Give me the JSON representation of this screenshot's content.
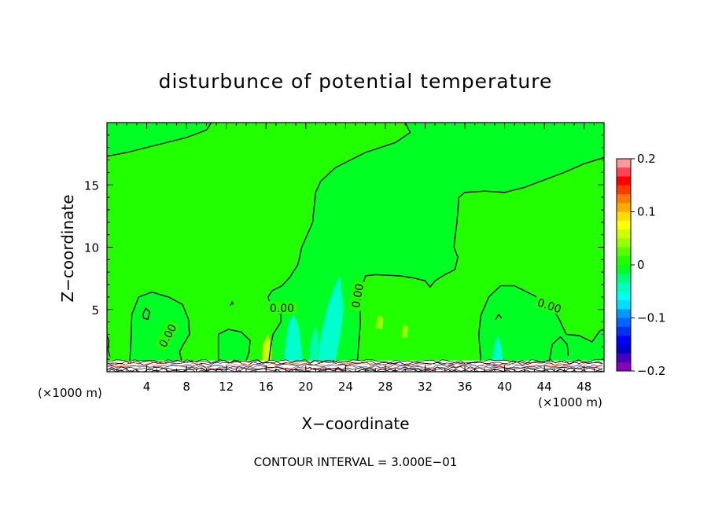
{
  "chart_data": {
    "type": "contour",
    "title": "disturbunce of potential temperature",
    "xlabel": "X−coordinate",
    "ylabel": "Z−coordinate",
    "x_unit_left": "(×1000 m)",
    "x_unit_right": "(×1000 m)",
    "xlim": [
      0,
      50
    ],
    "ylim": [
      0,
      20
    ],
    "xticks": [
      4,
      8,
      12,
      16,
      20,
      24,
      28,
      32,
      36,
      40,
      44,
      48
    ],
    "xtick_labels": [
      "4",
      "8",
      "12",
      "16",
      "20",
      "24",
      "28",
      "32",
      "36",
      "40",
      "44",
      "48"
    ],
    "yticks": [
      5,
      10,
      15
    ],
    "ytick_labels": [
      "5",
      "10",
      "15"
    ],
    "contour_interval_text": "CONTOUR INTERVAL = 3.000E−01",
    "contour_labels": [
      "0.00",
      "0.00",
      "0.00",
      "0.00",
      "0.00"
    ],
    "colorbar": {
      "min": -0.2,
      "max": 0.2,
      "ticks": [
        0.2,
        0.1,
        0,
        -0.1,
        -0.2
      ],
      "tick_labels": [
        "0.2",
        "0.1",
        "0",
        "−0.1",
        "−0.2"
      ],
      "colors": [
        "#ff9999",
        "#ff4455",
        "#ff0000",
        "#ff3a00",
        "#ff7a00",
        "#ffaa00",
        "#ffdd00",
        "#ffff00",
        "#ccff00",
        "#99ff00",
        "#55ff00",
        "#22ff00",
        "#00ff22",
        "#00ff77",
        "#00ffbb",
        "#00ffee",
        "#00ddff",
        "#0099ff",
        "#0066ff",
        "#0033ee",
        "#0000ff",
        "#0000cc",
        "#4400bb",
        "#8800bb"
      ]
    },
    "background_color": "#22ff00",
    "regions": [
      {
        "name": "upper-left",
        "color": "#00ff22",
        "points": [
          [
            0,
            20
          ],
          [
            0,
            17.3
          ],
          [
            2,
            17.6
          ],
          [
            5,
            18.2
          ],
          [
            8,
            18.8
          ],
          [
            10,
            19.4
          ],
          [
            10.5,
            20
          ]
        ]
      },
      {
        "name": "central-column",
        "color": "#00ff22",
        "points": [
          [
            30,
            20
          ],
          [
            30.5,
            19.2
          ],
          [
            29,
            18.4
          ],
          [
            26,
            17.6
          ],
          [
            23,
            16.4
          ],
          [
            21.5,
            15.3
          ],
          [
            21,
            14.4
          ],
          [
            20.8,
            13
          ],
          [
            20.7,
            12
          ],
          [
            19.6,
            10
          ],
          [
            19.2,
            8.6
          ],
          [
            18.4,
            7.6
          ],
          [
            17.6,
            6.9
          ],
          [
            16.6,
            6.5
          ],
          [
            16.2,
            6
          ],
          [
            16.5,
            5.2
          ],
          [
            17.5,
            4.6
          ],
          [
            17.5,
            4
          ],
          [
            16.7,
            3
          ],
          [
            16.5,
            2.2
          ],
          [
            16.3,
            0.9
          ],
          [
            25.2,
            0.9
          ],
          [
            25.5,
            4
          ],
          [
            25.4,
            6
          ],
          [
            26,
            7.7
          ],
          [
            27,
            7.8
          ],
          [
            29.5,
            7.7
          ],
          [
            31,
            7.5
          ],
          [
            32,
            7.3
          ],
          [
            32.5,
            6.8
          ],
          [
            33,
            7.3
          ],
          [
            34,
            7.8
          ],
          [
            35,
            8.2
          ],
          [
            35.3,
            9.2
          ],
          [
            34.9,
            10
          ],
          [
            35.2,
            12
          ],
          [
            35.4,
            14
          ],
          [
            36,
            14.4
          ],
          [
            38,
            14.5
          ],
          [
            40,
            14.4
          ],
          [
            42,
            14.8
          ],
          [
            44,
            15.4
          ],
          [
            46,
            16
          ],
          [
            48,
            16.7
          ],
          [
            50,
            17.2
          ],
          [
            50,
            20
          ]
        ]
      },
      {
        "name": "right-lower-dome",
        "color": "#00ff22",
        "points": [
          [
            37.6,
            0.9
          ],
          [
            37.4,
            3
          ],
          [
            37.6,
            4.5
          ],
          [
            38.4,
            6
          ],
          [
            39.6,
            6.9
          ],
          [
            41,
            6.9
          ],
          [
            43,
            6.1
          ],
          [
            44.6,
            5.4
          ],
          [
            45.5,
            4.2
          ],
          [
            46.2,
            3
          ],
          [
            47.5,
            2.9
          ],
          [
            48.8,
            2.4
          ],
          [
            49.6,
            3.3
          ],
          [
            50,
            3.4
          ],
          [
            50,
            0.9
          ]
        ]
      },
      {
        "name": "left-lower-dome",
        "color": "#00ff22",
        "points": [
          [
            2.3,
            0.9
          ],
          [
            2.4,
            2.2
          ],
          [
            2.5,
            4.6
          ],
          [
            3.2,
            6
          ],
          [
            4.5,
            6.4
          ],
          [
            6.2,
            6
          ],
          [
            7.6,
            5.4
          ],
          [
            8.2,
            4.2
          ],
          [
            8.3,
            3
          ],
          [
            7.7,
            2.2
          ],
          [
            7.3,
            1.6
          ],
          [
            7.5,
            0.9
          ]
        ]
      },
      {
        "name": "small-patch-12",
        "color": "#00ff22",
        "points": [
          [
            11.2,
            0.9
          ],
          [
            11.2,
            3
          ],
          [
            12.2,
            3.4
          ],
          [
            13.5,
            3.2
          ],
          [
            14.4,
            2.5
          ],
          [
            14.3,
            1.6
          ],
          [
            14,
            0.9
          ]
        ]
      },
      {
        "name": "cyan-plume-1",
        "color": "#00ffcc",
        "points": [
          [
            17.8,
            0.9
          ],
          [
            18,
            2.5
          ],
          [
            18.3,
            4
          ],
          [
            18.8,
            4.6
          ],
          [
            19.3,
            3.6
          ],
          [
            19.5,
            2.2
          ],
          [
            19.7,
            0.9
          ]
        ]
      },
      {
        "name": "cyan-plume-2",
        "color": "#00ffcc",
        "points": [
          [
            21.2,
            0.9
          ],
          [
            21.5,
            3
          ],
          [
            22.3,
            5.6
          ],
          [
            23.4,
            7.8
          ],
          [
            23.8,
            5
          ],
          [
            23.5,
            3
          ],
          [
            23,
            0.9
          ]
        ]
      },
      {
        "name": "cyan-plume-3",
        "color": "#00ffaa",
        "points": [
          [
            20.3,
            0.9
          ],
          [
            20.5,
            2.5
          ],
          [
            21,
            3.8
          ],
          [
            21.3,
            2.4
          ],
          [
            21.2,
            0.9
          ]
        ]
      },
      {
        "name": "cyan-plume-4",
        "color": "#00ffcc",
        "points": [
          [
            38.7,
            0.9
          ],
          [
            39,
            2.3
          ],
          [
            39.3,
            2.9
          ],
          [
            39.7,
            2
          ],
          [
            39.8,
            0.9
          ]
        ]
      },
      {
        "name": "yellow-patch-1",
        "color": "#ccff00",
        "points": [
          [
            15.6,
            0.9
          ],
          [
            15.7,
            2.2
          ],
          [
            16.2,
            3
          ],
          [
            16.6,
            2
          ],
          [
            16.5,
            0.9
          ]
        ]
      },
      {
        "name": "yellow-patch-2",
        "color": "#99ff00",
        "points": [
          [
            27,
            3.5
          ],
          [
            27.3,
            4.6
          ],
          [
            27.8,
            4.3
          ],
          [
            27.7,
            3.4
          ]
        ]
      },
      {
        "name": "yellow-patch-3",
        "color": "#99ff00",
        "points": [
          [
            29.6,
            2.8
          ],
          [
            29.8,
            3.8
          ],
          [
            30.3,
            3.6
          ],
          [
            30.2,
            2.7
          ]
        ]
      }
    ],
    "contour_lines": [
      {
        "name": "contour-upper-left",
        "points": [
          [
            0,
            17.3
          ],
          [
            2,
            17.6
          ],
          [
            5,
            18.2
          ],
          [
            8,
            18.8
          ],
          [
            10,
            19.4
          ],
          [
            10.5,
            20
          ]
        ]
      },
      {
        "name": "contour-central-left",
        "points": [
          [
            30,
            20
          ],
          [
            30.5,
            19.2
          ],
          [
            29,
            18.4
          ],
          [
            26,
            17.6
          ],
          [
            23,
            16.4
          ],
          [
            21.5,
            15.3
          ],
          [
            21,
            14.4
          ],
          [
            20.8,
            13
          ],
          [
            20.7,
            12
          ],
          [
            19.6,
            10
          ],
          [
            19.2,
            8.6
          ],
          [
            18.4,
            7.6
          ],
          [
            17.6,
            6.9
          ],
          [
            16.6,
            6.5
          ],
          [
            16.2,
            6
          ],
          [
            16.5,
            5.2
          ],
          [
            17.5,
            4.6
          ],
          [
            17.5,
            4
          ],
          [
            16.7,
            3
          ],
          [
            16.5,
            2.2
          ],
          [
            16.3,
            0.9
          ]
        ]
      },
      {
        "name": "contour-central-right",
        "points": [
          [
            25.2,
            0.9
          ],
          [
            25.5,
            4
          ],
          [
            25.4,
            6
          ],
          [
            26,
            7.7
          ],
          [
            27,
            7.8
          ],
          [
            29.5,
            7.7
          ],
          [
            31,
            7.5
          ],
          [
            32,
            7.3
          ],
          [
            32.5,
            6.8
          ],
          [
            33,
            7.3
          ],
          [
            34,
            7.8
          ],
          [
            35,
            8.2
          ],
          [
            35.3,
            9.2
          ],
          [
            34.9,
            10
          ],
          [
            35.2,
            12
          ],
          [
            35.4,
            14
          ],
          [
            36,
            14.4
          ],
          [
            38,
            14.5
          ],
          [
            40,
            14.4
          ],
          [
            42,
            14.8
          ],
          [
            44,
            15.4
          ],
          [
            46,
            16
          ],
          [
            48,
            16.7
          ],
          [
            50,
            17.2
          ]
        ]
      },
      {
        "name": "contour-right-dome",
        "points": [
          [
            37.6,
            0.9
          ],
          [
            37.4,
            3
          ],
          [
            37.6,
            4.5
          ],
          [
            38.4,
            6
          ],
          [
            39.6,
            6.9
          ],
          [
            41,
            6.9
          ],
          [
            43,
            6.1
          ],
          [
            44.6,
            5.4
          ],
          [
            45.5,
            4.2
          ],
          [
            46.2,
            3
          ],
          [
            47.5,
            2.9
          ],
          [
            48.8,
            2.4
          ],
          [
            49.6,
            3.3
          ],
          [
            50,
            3.4
          ]
        ]
      },
      {
        "name": "contour-left-dome",
        "points": [
          [
            2.3,
            0.9
          ],
          [
            2.4,
            2.2
          ],
          [
            2.5,
            4.6
          ],
          [
            3.2,
            6
          ],
          [
            4.5,
            6.4
          ],
          [
            6.2,
            6
          ],
          [
            7.6,
            5.4
          ],
          [
            8.2,
            4.2
          ],
          [
            8.3,
            3
          ],
          [
            7.7,
            2.2
          ],
          [
            7.3,
            1.6
          ],
          [
            7.5,
            0.9
          ]
        ]
      },
      {
        "name": "contour-left-inner",
        "points": [
          [
            3.6,
            4.6
          ],
          [
            3.9,
            5.1
          ],
          [
            4.3,
            4.8
          ],
          [
            4.1,
            4.2
          ],
          [
            3.7,
            4.3
          ],
          [
            3.6,
            4.6
          ]
        ]
      },
      {
        "name": "contour-left-edge",
        "points": [
          [
            0,
            2.9
          ],
          [
            0.2,
            2.5
          ],
          [
            0.1,
            1.8
          ],
          [
            0.3,
            1.2
          ]
        ]
      },
      {
        "name": "contour-patch-12",
        "points": [
          [
            11.2,
            0.9
          ],
          [
            11.2,
            3
          ],
          [
            12.2,
            3.4
          ],
          [
            13.5,
            3.2
          ],
          [
            14.4,
            2.5
          ],
          [
            14.3,
            1.6
          ],
          [
            14,
            0.9
          ]
        ]
      },
      {
        "name": "contour-right-small",
        "points": [
          [
            44.5,
            0.9
          ],
          [
            44.8,
            2.2
          ],
          [
            45.6,
            2.8
          ],
          [
            46.3,
            2.2
          ],
          [
            46.4,
            1.3
          ]
        ]
      },
      {
        "name": "contour-dot-12",
        "points": [
          [
            12.4,
            5.3
          ],
          [
            12.6,
            5.6
          ],
          [
            12.7,
            5.4
          ]
        ]
      },
      {
        "name": "contour-right-inner",
        "points": [
          [
            39.1,
            4.2
          ],
          [
            39.4,
            4.6
          ],
          [
            39.7,
            4.3
          ]
        ]
      }
    ],
    "contour_label_positions": [
      {
        "text_index": 0,
        "x": 6.1,
        "y": 2.9,
        "angle": -62
      },
      {
        "text_index": 1,
        "x": 17.6,
        "y": 5.1,
        "angle": 0
      },
      {
        "text_index": 2,
        "x": 25.2,
        "y": 6.1,
        "angle": -80
      },
      {
        "text_index": 3,
        "x": 44.5,
        "y": 5.3,
        "angle": 18
      },
      {
        "text_index": 4,
        "x": 24.9,
        "y": 6.3,
        "angle": 0,
        "hidden": true
      }
    ]
  }
}
